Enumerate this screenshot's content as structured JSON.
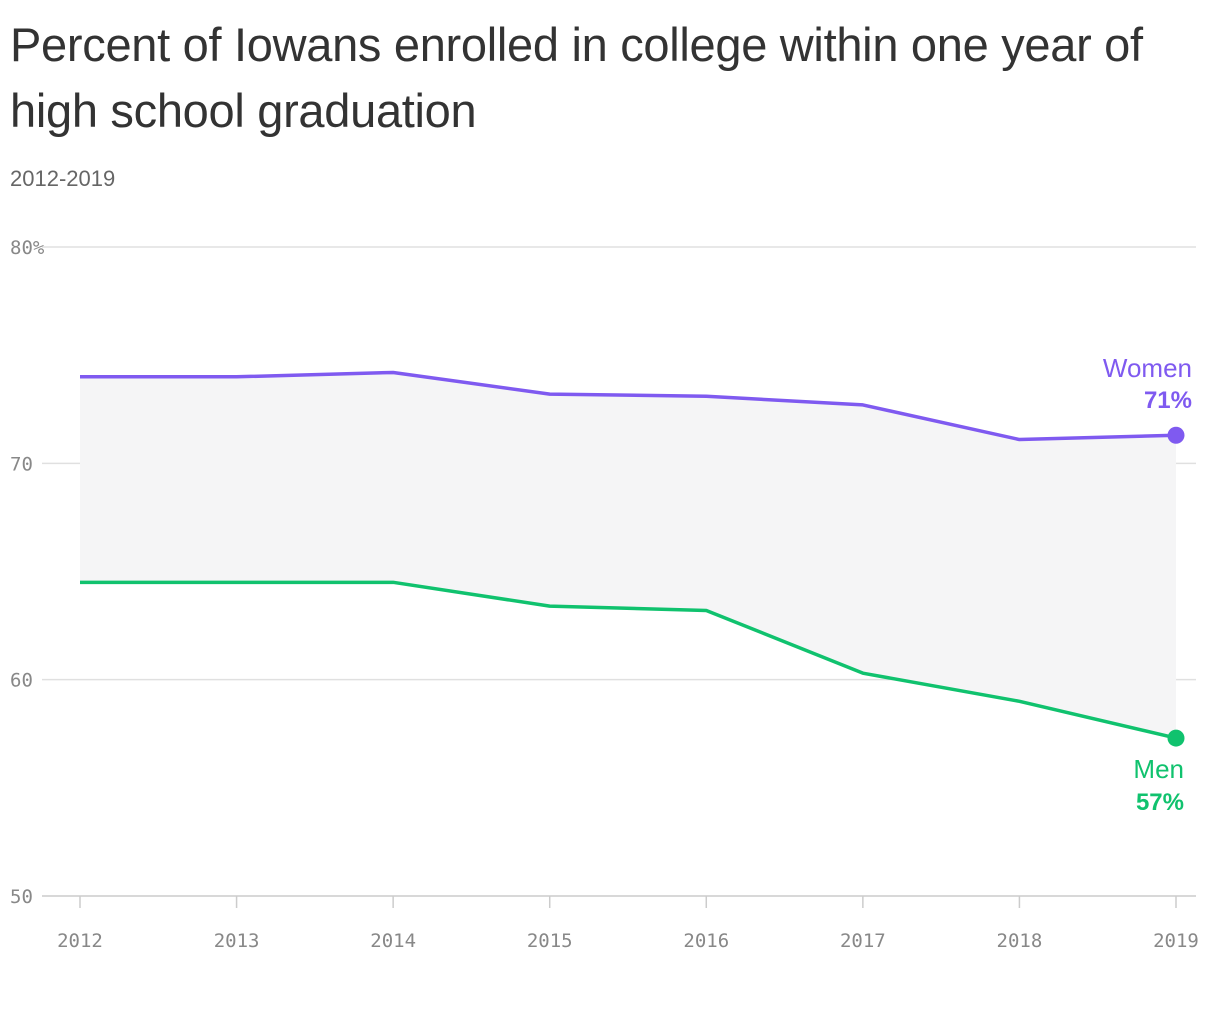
{
  "header": {
    "title": "Percent of Iowans enrolled in college within one year of high school graduation",
    "subtitle": "2012-2019"
  },
  "chart_data": {
    "type": "line",
    "x": [
      2012,
      2013,
      2014,
      2015,
      2016,
      2017,
      2018,
      2019
    ],
    "x_tick_labels": [
      "2012",
      "2013",
      "2014",
      "2015",
      "2016",
      "2017",
      "2018",
      "2019"
    ],
    "y_ticks": [
      50,
      60,
      70,
      80
    ],
    "y_tick_labels": [
      "50",
      "60",
      "70",
      "80%"
    ],
    "ylim": [
      50,
      80
    ],
    "grid": true,
    "fill_between_series": true,
    "series": [
      {
        "name": "Women",
        "end_label": "71%",
        "color": "#7f5af0",
        "values": [
          74.0,
          74.0,
          74.2,
          73.2,
          73.1,
          72.7,
          71.1,
          71.3
        ]
      },
      {
        "name": "Men",
        "end_label": "57%",
        "color": "#10c26e",
        "values": [
          64.5,
          64.5,
          64.5,
          63.4,
          63.2,
          60.3,
          59.0,
          57.3
        ]
      }
    ]
  }
}
